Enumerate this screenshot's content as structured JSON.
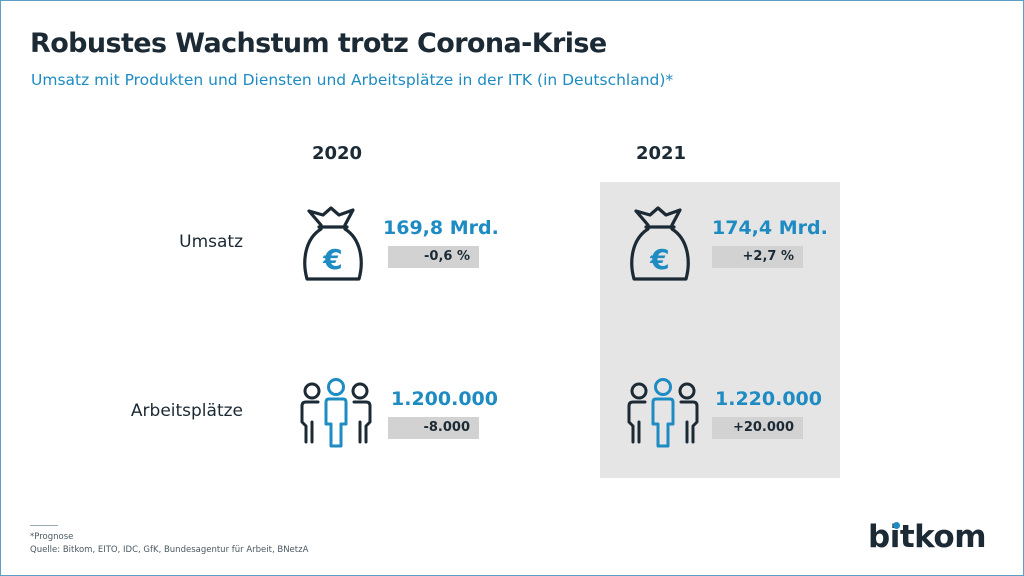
{
  "title": "Robustes Wachstum trotz Corona-Krise",
  "subtitle": "Umsatz mit Produkten und Diensten und Arbeitsplätze in der ITK (in Deutschland)*",
  "years": [
    "2020",
    "2021"
  ],
  "rows": [
    {
      "label": "Umsatz",
      "icon": "money-bag-euro-icon"
    },
    {
      "label": "Arbeitsplätze",
      "icon": "people-group-icon"
    }
  ],
  "chart_data": {
    "type": "table",
    "columns": [
      "2020",
      "2021"
    ],
    "highlighted_column": "2021",
    "rows": [
      {
        "label": "Umsatz",
        "values": [
          "169,8 Mrd.",
          "174,4 Mrd."
        ],
        "changes": [
          "-0,6 %",
          "+2,7 %"
        ]
      },
      {
        "label": "Arbeitsplätze",
        "values": [
          "1.200.000",
          "1.220.000"
        ],
        "changes": [
          "-8.000",
          "+20.000"
        ]
      }
    ]
  },
  "footnote": {
    "note": "*Prognose",
    "source": "Quelle: Bitkom, EITO, IDC, GfK, Bundesagentur für Arbeit, BNetzA"
  },
  "logo": "bitkom",
  "colors": {
    "accent": "#1e8bc3",
    "text": "#1b2a35",
    "highlight_bg": "#e5e5e5",
    "badge_bg": "#d2d2d2"
  }
}
